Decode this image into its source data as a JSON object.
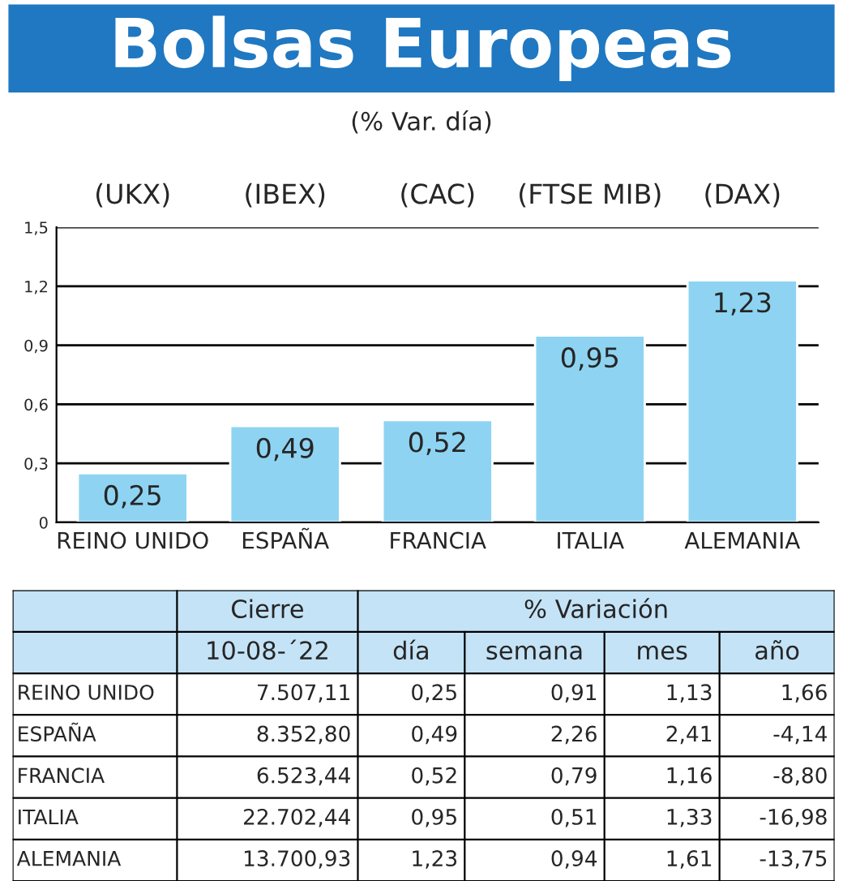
{
  "chart_data": [
    {
      "type": "bar",
      "title": "Bolsas Europeas",
      "subtitle": "(% Var. día)",
      "categories": [
        "REINO UNIDO",
        "ESPAÑA",
        "FRANCIA",
        "ITALIA",
        "ALEMANIA"
      ],
      "values": [
        0.25,
        0.49,
        0.52,
        0.95,
        1.23
      ],
      "value_labels": [
        "0,25",
        "0,49",
        "0,52",
        "0,95",
        "1,23"
      ],
      "color": "#8ed4f2",
      "annotations": [
        "(UKX)",
        "(IBEX)",
        "(CAC)",
        "(FTSE MIB)",
        "(DAX)"
      ],
      "ylim": [
        0,
        1.5
      ],
      "yticks": [
        0,
        {
          "value": 0.3,
          "label": "0,3"
        },
        {
          "value": 0.6,
          "label": "0,6"
        },
        {
          "value": 0.9,
          "label": "0,9"
        },
        {
          "value": 1.2,
          "label": "1,2"
        },
        {
          "value": 1.5,
          "label": "1,5"
        }
      ],
      "grid": "y"
    },
    {
      "type": "other",
      "annotations": [
        "Cierre",
        "% Variación"
      ],
      "categories": [
        "10-08-´22",
        "día",
        "semana",
        "mes",
        "año"
      ],
      "y_categories": [
        "REINO UNIDO",
        "ESPAÑA",
        "FRANCIA",
        "ITALIA",
        "ALEMANIA"
      ],
      "cell_labels": [
        [
          "7.507,11",
          "0,25",
          "0,91",
          "1,13",
          "1,66"
        ],
        [
          "8.352,80",
          "0,49",
          "2,26",
          "2,41",
          "-4,14"
        ],
        [
          "6.523,44",
          "0,52",
          "0,79",
          "1,16",
          "-8,80"
        ],
        [
          "22.702,44",
          "0,95",
          "0,51",
          "1,33",
          "-16,98"
        ],
        [
          "13.700,93",
          "1,23",
          "0,94",
          "1,61",
          "-13,75"
        ]
      ]
    }
  ]
}
